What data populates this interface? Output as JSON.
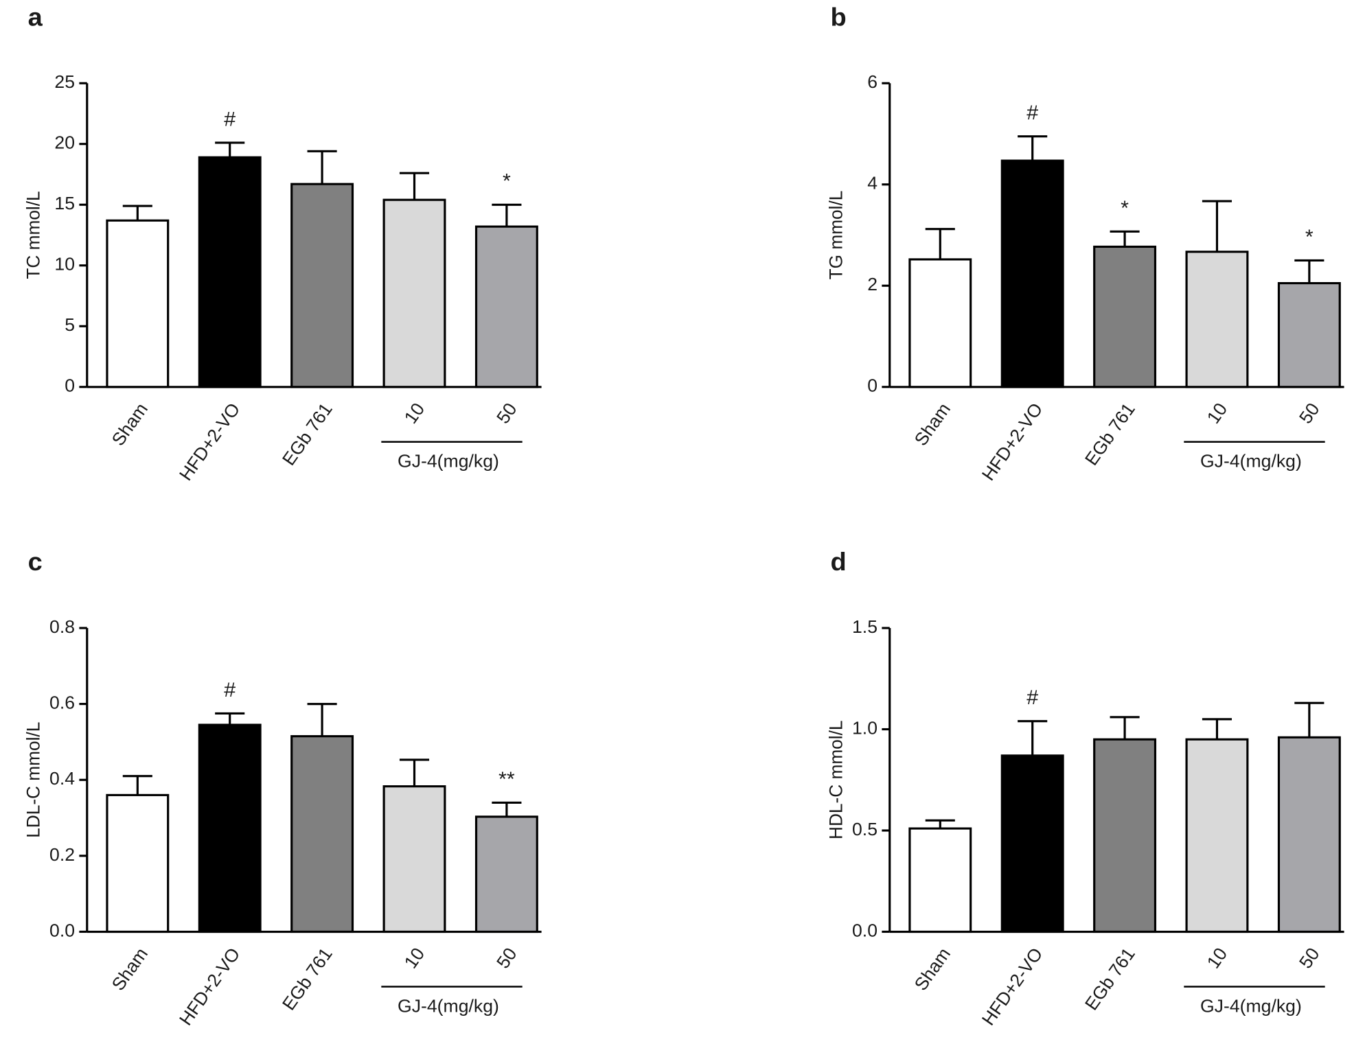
{
  "chart_data": [
    {
      "type": "bar",
      "panel_label": "a",
      "y_label": "TC mmol/L",
      "categories": [
        "Sham",
        "HFD+2-VO",
        "EGb 761",
        "10",
        "50"
      ],
      "group_label": "GJ-4(mg/kg)",
      "values": [
        13.7,
        18.9,
        16.7,
        15.4,
        13.2
      ],
      "errors": [
        1.2,
        1.2,
        2.7,
        2.2,
        1.8
      ],
      "annotations": [
        null,
        "#",
        null,
        null,
        "*"
      ],
      "colors": [
        "#ffffff",
        "#000000",
        "#808080",
        "#d9d9d9",
        "#a6a6aa"
      ],
      "ylim": [
        0,
        25
      ],
      "yticks": [
        0,
        5,
        10,
        15,
        20,
        25
      ]
    },
    {
      "type": "bar",
      "panel_label": "b",
      "y_label": "TG mmol/L",
      "categories": [
        "Sham",
        "HFD+2-VO",
        "EGb 761",
        "10",
        "50"
      ],
      "group_label": "GJ-4(mg/kg)",
      "values": [
        2.52,
        4.47,
        2.77,
        2.67,
        2.05
      ],
      "errors": [
        0.6,
        0.48,
        0.3,
        1.0,
        0.45
      ],
      "annotations": [
        null,
        "#",
        "*",
        null,
        "*"
      ],
      "colors": [
        "#ffffff",
        "#000000",
        "#808080",
        "#d9d9d9",
        "#a6a6aa"
      ],
      "ylim": [
        0,
        6
      ],
      "yticks": [
        0,
        2,
        4,
        6
      ]
    },
    {
      "type": "bar",
      "panel_label": "c",
      "y_label": "LDL-C mmol/L",
      "categories": [
        "Sham",
        "HFD+2-VO",
        "EGb 761",
        "10",
        "50"
      ],
      "group_label": "GJ-4(mg/kg)",
      "values": [
        0.36,
        0.545,
        0.515,
        0.383,
        0.303
      ],
      "errors": [
        0.05,
        0.03,
        0.085,
        0.07,
        0.037
      ],
      "annotations": [
        null,
        "#",
        null,
        null,
        "**"
      ],
      "colors": [
        "#ffffff",
        "#000000",
        "#808080",
        "#d9d9d9",
        "#a6a6aa"
      ],
      "ylim": [
        0,
        0.8
      ],
      "yticks": [
        {
          "value": 0,
          "label": "0.0"
        },
        0.2,
        0.4,
        0.6,
        0.8
      ]
    },
    {
      "type": "bar",
      "panel_label": "d",
      "y_label": "HDL-C mmol/L",
      "categories": [
        "Sham",
        "HFD+2-VO",
        "EGb 761",
        "10",
        "50"
      ],
      "group_label": "GJ-4(mg/kg)",
      "values": [
        0.51,
        0.87,
        0.95,
        0.95,
        0.96
      ],
      "errors": [
        0.04,
        0.17,
        0.11,
        0.1,
        0.17
      ],
      "annotations": [
        null,
        "#",
        null,
        null,
        null
      ],
      "colors": [
        "#ffffff",
        "#000000",
        "#808080",
        "#d9d9d9",
        "#a6a6aa"
      ],
      "ylim": [
        0,
        1.5
      ],
      "yticks": [
        {
          "value": 0,
          "label": "0.0"
        },
        0.5,
        {
          "value": 1,
          "label": "1.0"
        },
        1.5
      ]
    }
  ]
}
